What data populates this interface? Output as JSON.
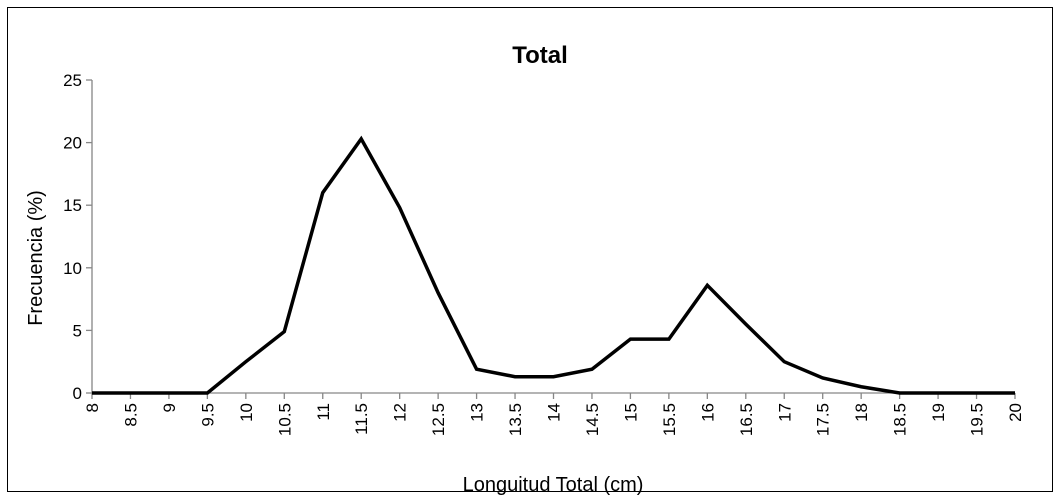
{
  "chart_data": {
    "type": "line",
    "title": "Total",
    "xlabel": "Longuitud Total (cm)",
    "ylabel": "Frecuencia  (%)",
    "ylim": [
      0,
      25
    ],
    "yticks": [
      "0",
      "5",
      "10",
      "15",
      "20",
      "25"
    ],
    "grid": false,
    "legend": "none",
    "line_color": "#000000",
    "categories": [
      "8",
      "8.5",
      "9",
      "9.5",
      "10",
      "10.5",
      "11",
      "11.5",
      "12",
      "12.5",
      "13",
      "13.5",
      "14",
      "14.5",
      "15",
      "15.5",
      "16",
      "16.5",
      "17",
      "17.5",
      "18",
      "18.5",
      "19",
      "19.5",
      "20"
    ],
    "series": [
      {
        "values": [
          0,
          0,
          0,
          0,
          2.5,
          4.9,
          16.0,
          20.3,
          14.8,
          8.0,
          1.9,
          1.3,
          1.3,
          1.9,
          4.3,
          4.3,
          8.6,
          5.5,
          2.5,
          1.2,
          0.5,
          0,
          0,
          0,
          0
        ]
      }
    ]
  }
}
